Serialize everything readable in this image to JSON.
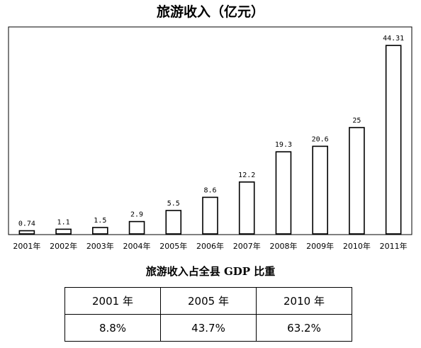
{
  "chart_data": {
    "type": "bar",
    "title": "旅游收入（亿元）",
    "categories": [
      "2001年",
      "2002年",
      "2003年",
      "2004年",
      "2005年",
      "2006年",
      "2007年",
      "2008年",
      "2009年",
      "2010年",
      "2011年"
    ],
    "values": [
      0.74,
      1.1,
      1.5,
      2.9,
      5.5,
      8.6,
      12.2,
      19.3,
      20.6,
      25,
      44.31
    ],
    "value_labels": [
      "0.74",
      "1.1",
      "1.5",
      "2.9",
      "5.5",
      "8.6",
      "12.2",
      "19.3",
      "20.6",
      "25",
      "44.31"
    ],
    "xlabel": "",
    "ylabel": "",
    "ylim": [
      0,
      50
    ],
    "grid": false
  },
  "table": {
    "title": "旅游收入占全县 GDP 比重",
    "headers": [
      "2001 年",
      "2005 年",
      "2010 年"
    ],
    "values": [
      "8.8%",
      "43.7%",
      "63.2%"
    ]
  }
}
